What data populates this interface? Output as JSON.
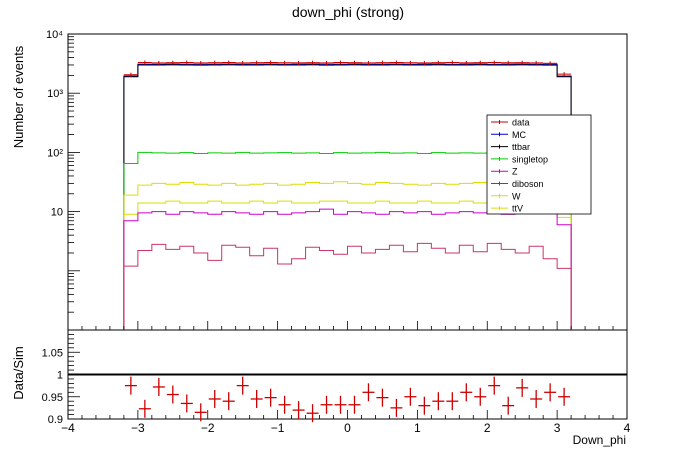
{
  "chart_data": [
    {
      "type": "step",
      "panel": "main",
      "title": "down_phi (strong)",
      "ylabel": "Number of events",
      "yscale": "log",
      "ylim": [
        0.1,
        10000
      ],
      "xlim": [
        -4,
        4
      ],
      "x_edges_range": [
        -3.2,
        3.2
      ],
      "n_bins": 32,
      "y_tick_labels": [
        "10",
        "10²",
        "10³",
        "10⁴"
      ],
      "legend_position": "right, middle",
      "legend": [
        {
          "name": "data",
          "color": "#cc0000"
        },
        {
          "name": "MC",
          "color": "#0000cc"
        },
        {
          "name": "ttbar",
          "color": "#000000"
        },
        {
          "name": "singletop",
          "color": "#00cc00"
        },
        {
          "name": "Z",
          "color": "#cc00cc"
        },
        {
          "name": "diboson",
          "color": "#cc00cc"
        },
        {
          "name": "W",
          "color": "#dddd00"
        },
        {
          "name": "ttV",
          "color": "#dddd00"
        }
      ],
      "series": [
        {
          "name": "data",
          "kind": "points",
          "color": "#cc0000",
          "values": [
            2050,
            3300,
            3250,
            3280,
            3300,
            3250,
            3280,
            3300,
            3250,
            3280,
            3300,
            3270,
            3260,
            3280,
            3250,
            3300,
            3280,
            3250,
            3280,
            3300,
            3270,
            3250,
            3280,
            3300,
            3260,
            3280,
            3300,
            3270,
            3280,
            3250,
            3200,
            2100
          ]
        },
        {
          "name": "MC",
          "kind": "line",
          "color": "#0000cc",
          "values": [
            1950,
            3100,
            3090,
            3110,
            3100,
            3080,
            3100,
            3110,
            3090,
            3100,
            3110,
            3090,
            3100,
            3110,
            3080,
            3100,
            3110,
            3090,
            3100,
            3110,
            3090,
            3100,
            3110,
            3090,
            3100,
            3110,
            3090,
            3100,
            3110,
            3090,
            3080,
            1950
          ]
        },
        {
          "name": "ttbar",
          "kind": "line",
          "color": "#000000",
          "values": [
            1900,
            3000,
            2990,
            3010,
            3000,
            2980,
            3000,
            3010,
            2990,
            3000,
            3010,
            2990,
            3000,
            3010,
            2980,
            3000,
            3010,
            2990,
            3000,
            3010,
            2990,
            3000,
            3010,
            2990,
            3000,
            3010,
            2990,
            3000,
            3010,
            2990,
            2980,
            1900
          ]
        },
        {
          "name": "singletop",
          "kind": "line",
          "color": "#00cc00",
          "values": [
            65,
            100,
            98,
            97,
            99,
            96,
            98,
            97,
            100,
            97,
            98,
            99,
            97,
            98,
            96,
            99,
            97,
            98,
            100,
            97,
            98,
            96,
            99,
            97,
            98,
            97,
            99,
            98,
            97,
            100,
            97,
            62
          ]
        },
        {
          "name": "W",
          "kind": "line",
          "color": "#dddd00",
          "values": [
            19,
            28,
            30,
            29,
            31,
            29,
            28,
            30,
            28,
            29,
            30,
            28,
            29,
            31,
            30,
            32,
            30,
            29,
            31,
            30,
            29,
            28,
            30,
            29,
            30,
            31,
            29,
            28,
            30,
            29,
            27,
            18
          ]
        },
        {
          "name": "ttV",
          "kind": "line",
          "color": "#dddd00",
          "values": [
            9,
            14,
            14,
            15,
            14,
            14,
            15,
            14,
            14,
            15,
            14,
            15,
            14,
            14,
            15,
            15,
            14,
            14,
            15,
            14,
            14,
            15,
            14,
            14,
            15,
            14,
            15,
            14,
            14,
            14,
            13,
            8
          ]
        },
        {
          "name": "Z",
          "kind": "line",
          "color": "#cc00cc",
          "values": [
            7,
            9.5,
            10,
            9,
            10,
            9.5,
            9,
            10,
            9.5,
            9,
            10,
            9,
            9.5,
            10,
            11,
            9,
            10,
            9.5,
            9,
            10,
            9.5,
            10,
            9,
            9.5,
            10,
            9.5,
            10,
            9,
            9.5,
            11,
            9.5,
            6
          ]
        },
        {
          "name": "diboson",
          "kind": "line",
          "color": "#cc3366",
          "values": [
            1.2,
            2.2,
            2.8,
            2.3,
            2.6,
            2.0,
            1.5,
            2.7,
            2.5,
            1.8,
            2.4,
            1.3,
            1.6,
            2.5,
            2.2,
            1.9,
            2.6,
            2.0,
            2.3,
            2.7,
            2.1,
            2.9,
            2.4,
            2.0,
            2.7,
            2.1,
            2.9,
            2.3,
            2.0,
            2.6,
            1.6,
            1.1
          ]
        }
      ]
    },
    {
      "type": "scatter",
      "panel": "ratio",
      "ylabel": "Data/Sim",
      "xlabel": "Down_phi",
      "xlim": [
        -4,
        4
      ],
      "ylim": [
        0.9,
        1.1
      ],
      "x_tick_labels": [
        "−4",
        "−3",
        "−2",
        "−1",
        "0",
        "1",
        "2",
        "3",
        "4"
      ],
      "y_tick_labels": [
        "0.9",
        "0.95",
        "1",
        "1.05"
      ],
      "reference_line": 1,
      "series": [
        {
          "name": "ratio",
          "color": "#cc0000",
          "x": [
            -3.1,
            -2.9,
            -2.7,
            -2.5,
            -2.3,
            -2.1,
            -1.9,
            -1.7,
            -1.5,
            -1.3,
            -1.1,
            -0.9,
            -0.7,
            -0.5,
            -0.3,
            -0.1,
            0.1,
            0.3,
            0.5,
            0.7,
            0.9,
            1.1,
            1.3,
            1.5,
            1.7,
            1.9,
            2.1,
            2.3,
            2.5,
            2.7,
            2.9,
            3.1
          ],
          "values": [
            0.975,
            0.923,
            0.972,
            0.955,
            0.935,
            0.915,
            0.945,
            0.94,
            0.975,
            0.945,
            0.948,
            0.932,
            0.92,
            0.913,
            0.932,
            0.932,
            0.932,
            0.96,
            0.948,
            0.925,
            0.95,
            0.93,
            0.94,
            0.94,
            0.96,
            0.95,
            0.975,
            0.93,
            0.97,
            0.945,
            0.96,
            0.95
          ]
        }
      ]
    }
  ]
}
